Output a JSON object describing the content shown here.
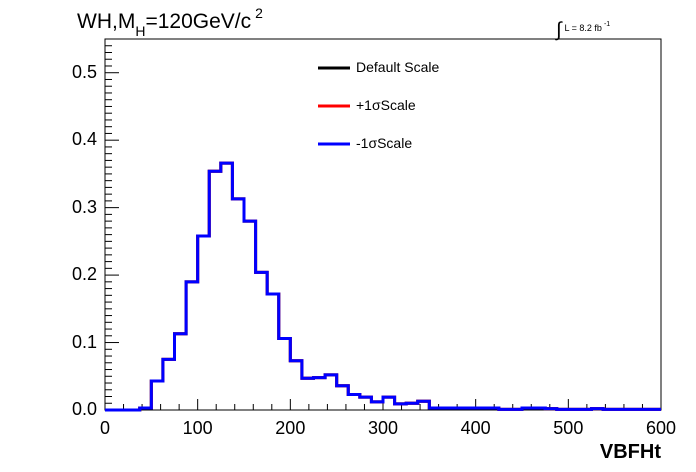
{
  "header": {
    "title_main": "WH,M",
    "title_sub": "H",
    "title_value": "=120GeV/c",
    "title_sup": "2",
    "lumi_integral": "∫",
    "lumi_text": "L = 8.2 fb",
    "lumi_sup": "-1"
  },
  "colors": {
    "default": "#000000",
    "plus": "#ff0000",
    "minus": "#0000ff"
  },
  "chart_data": {
    "type": "line",
    "title": "WH,MH=120GeV/c 2",
    "xlabel": "VBFHt",
    "ylabel": "",
    "xlim": [
      0,
      600
    ],
    "ylim": [
      0,
      0.55
    ],
    "xticks": [
      "0",
      "100",
      "200",
      "300",
      "400",
      "500",
      "600"
    ],
    "yticks": [
      "0.0",
      "0.1",
      "0.2",
      "0.3",
      "0.4",
      "0.5"
    ],
    "grid": false,
    "legend_position": "top-center",
    "bin_edges": [
      0,
      12.5,
      25,
      37.5,
      50,
      62.5,
      75,
      87.5,
      100,
      112.5,
      125,
      137.5,
      150,
      162.5,
      175,
      187.5,
      200,
      212.5,
      225,
      237.5,
      250,
      262.5,
      275,
      287.5,
      300,
      312.5,
      325,
      337.5,
      350,
      362.5,
      375,
      387.5,
      400,
      412.5,
      425,
      437.5,
      450,
      462.5,
      475,
      487.5,
      500,
      512.5,
      525,
      537.5,
      550,
      562.5,
      575,
      587.5,
      600
    ],
    "series": [
      {
        "name": "Default Scale",
        "color": "#000000",
        "values": [
          0,
          0,
          0,
          0.003,
          0.043,
          0.075,
          0.113,
          0.19,
          0.258,
          0.354,
          0.366,
          0.313,
          0.28,
          0.204,
          0.172,
          0.106,
          0.073,
          0.047,
          0.048,
          0.052,
          0.036,
          0.023,
          0.019,
          0.012,
          0.019,
          0.009,
          0.01,
          0.013,
          0.003,
          0.003,
          0.003,
          0.003,
          0.003,
          0.003,
          0.001,
          0.001,
          0.003,
          0.003,
          0.002,
          0.001,
          0.001,
          0.001,
          0.002,
          0.001,
          0.001,
          0.001,
          0.001,
          0.001
        ]
      },
      {
        "name": "+1σScale",
        "color": "#ff0000",
        "values": [
          0,
          0,
          0,
          0.003,
          0.043,
          0.075,
          0.113,
          0.19,
          0.258,
          0.354,
          0.366,
          0.313,
          0.28,
          0.204,
          0.172,
          0.106,
          0.073,
          0.047,
          0.048,
          0.052,
          0.036,
          0.023,
          0.019,
          0.012,
          0.019,
          0.009,
          0.01,
          0.013,
          0.003,
          0.003,
          0.003,
          0.003,
          0.003,
          0.003,
          0.001,
          0.001,
          0.003,
          0.003,
          0.002,
          0.001,
          0.001,
          0.001,
          0.002,
          0.001,
          0.001,
          0.001,
          0.001,
          0.001
        ]
      },
      {
        "name": "-1σScale",
        "color": "#0000ff",
        "values": [
          0,
          0,
          0,
          0.003,
          0.043,
          0.075,
          0.113,
          0.19,
          0.258,
          0.354,
          0.366,
          0.313,
          0.28,
          0.204,
          0.172,
          0.106,
          0.073,
          0.047,
          0.048,
          0.052,
          0.036,
          0.023,
          0.019,
          0.012,
          0.019,
          0.009,
          0.01,
          0.013,
          0.003,
          0.003,
          0.003,
          0.003,
          0.003,
          0.003,
          0.001,
          0.001,
          0.003,
          0.003,
          0.002,
          0.001,
          0.001,
          0.001,
          0.002,
          0.001,
          0.001,
          0.001,
          0.001,
          0.001
        ]
      }
    ]
  }
}
